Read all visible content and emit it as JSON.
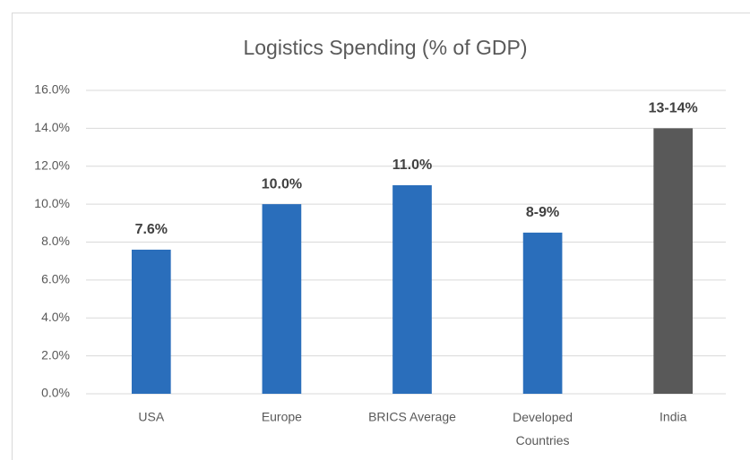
{
  "chart_data": {
    "type": "bar",
    "title": "Logistics Spending (% of GDP)",
    "categories": [
      "USA",
      "Europe",
      "BRICS Average",
      "Developed Countries",
      "India"
    ],
    "values": [
      7.6,
      10.0,
      11.0,
      8.5,
      14.0
    ],
    "value_labels": [
      "7.6%",
      "10.0%",
      "11.0%",
      "8-9%",
      "13-14%"
    ],
    "colors": [
      "#2a6ebb",
      "#2a6ebb",
      "#2a6ebb",
      "#2a6ebb",
      "#595959"
    ],
    "ylim": [
      0,
      16
    ],
    "yticks": [
      {
        "value": 0,
        "label": "0.0%"
      },
      {
        "value": 2,
        "label": "2.0%"
      },
      {
        "value": 4,
        "label": "4.0%"
      },
      {
        "value": 6,
        "label": "6.0%"
      },
      {
        "value": 8,
        "label": "8.0%"
      },
      {
        "value": 10,
        "label": "10.0%"
      },
      {
        "value": 12,
        "label": "12.0%"
      },
      {
        "value": 14,
        "label": "14.0%"
      },
      {
        "value": 16,
        "label": "16.0%"
      }
    ],
    "grid": true
  }
}
